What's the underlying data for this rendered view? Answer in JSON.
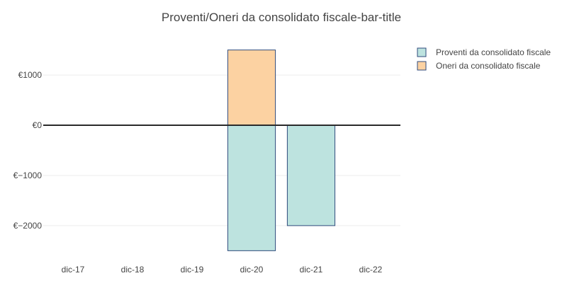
{
  "chart_data": {
    "type": "bar",
    "barmode": "relative",
    "title": "Proventi/Oneri da consolidato fiscale-bar-title",
    "xlabel": "",
    "ylabel": "",
    "categories": [
      "dic-17",
      "dic-18",
      "dic-19",
      "dic-20",
      "dic-21",
      "dic-22"
    ],
    "series": [
      {
        "name": "Proventi da consolidato fiscale",
        "values": [
          0,
          0,
          0,
          -2500,
          -2000,
          0
        ],
        "color": "#bde3df",
        "stroke": "#2f4b7c"
      },
      {
        "name": "Oneri da consolidato fiscale",
        "values": [
          0,
          0,
          0,
          1500,
          0,
          0
        ],
        "color": "#fcd2a2",
        "stroke": "#2f4b7c"
      }
    ],
    "yticks": [
      1000,
      0,
      -1000,
      -2000
    ],
    "ytick_labels": [
      "€1000",
      "€0",
      "€−1000",
      "€−2000"
    ],
    "ylim": [
      -2650,
      1650
    ],
    "grid": true,
    "zero_line_color": "#2a2a2a",
    "grid_color": "#eeeeee",
    "legend_position": "top-right"
  }
}
